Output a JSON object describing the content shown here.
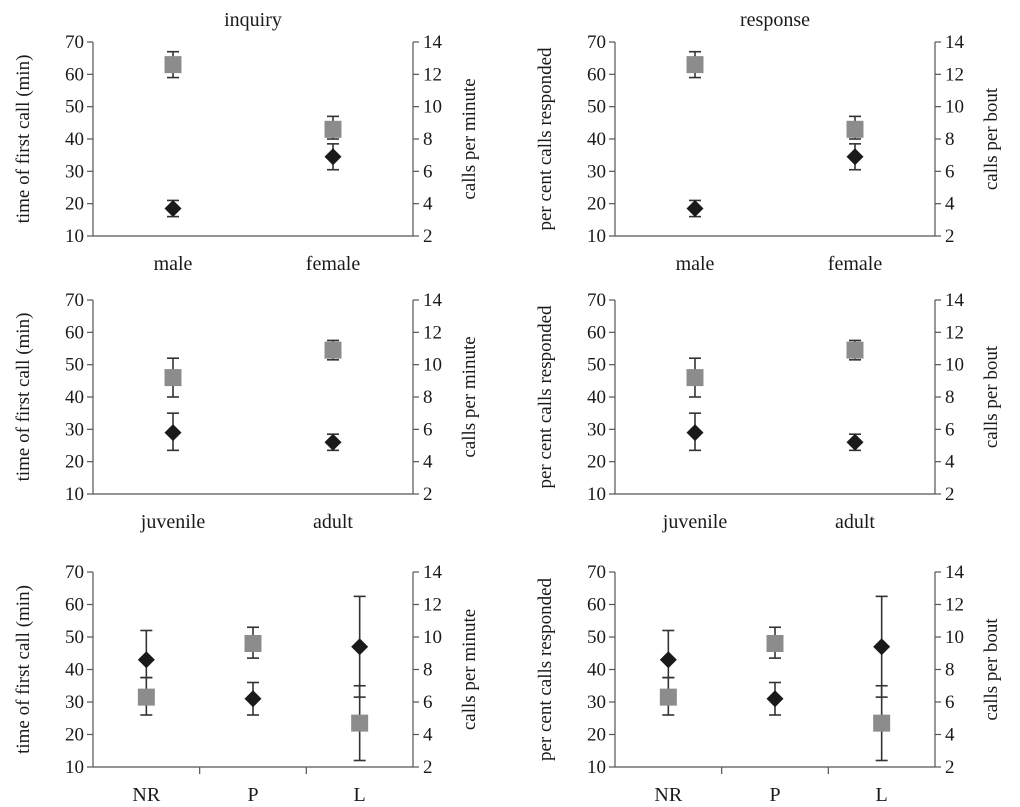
{
  "colors": {
    "axis": "#555555",
    "diamond": "#1a1a1a",
    "square": "#8c8c8c",
    "errorbar": "#333333",
    "text": "#1a1a1a"
  },
  "chart_data": [
    {
      "type": "scatter",
      "title": "inquiry",
      "ylabel": "time of first call (min)",
      "y2label": "calls per minute",
      "categories": [
        "male",
        "female"
      ],
      "ylim": [
        10,
        70
      ],
      "y2lim": [
        2,
        14
      ],
      "yticks": [
        "10",
        "20",
        "30",
        "40",
        "50",
        "60",
        "70"
      ],
      "y2ticks": [
        "2",
        "4",
        "6",
        "8",
        "10",
        "12",
        "14"
      ],
      "category_dividers": false,
      "series": [
        {
          "marker": "square",
          "axis": "left",
          "values": [
            63,
            43
          ],
          "err_low": [
            59,
            40
          ],
          "err_high": [
            67,
            47
          ]
        },
        {
          "marker": "diamond",
          "axis": "left",
          "values": [
            18.5,
            34.5
          ],
          "err_low": [
            16,
            30.5
          ],
          "err_high": [
            21,
            38.5
          ]
        }
      ]
    },
    {
      "type": "scatter",
      "title": "response",
      "ylabel": "per cent calls responded",
      "y2label": "calls per bout",
      "categories": [
        "male",
        "female"
      ],
      "ylim": [
        10,
        70
      ],
      "y2lim": [
        2,
        14
      ],
      "yticks": [
        "10",
        "20",
        "30",
        "40",
        "50",
        "60",
        "70"
      ],
      "y2ticks": [
        "2",
        "4",
        "6",
        "8",
        "10",
        "12",
        "14"
      ],
      "category_dividers": false,
      "series": [
        {
          "marker": "square",
          "axis": "left",
          "values": [
            63,
            43
          ],
          "err_low": [
            59,
            40
          ],
          "err_high": [
            67,
            47
          ]
        },
        {
          "marker": "diamond",
          "axis": "left",
          "values": [
            18.5,
            34.5
          ],
          "err_low": [
            16,
            30.5
          ],
          "err_high": [
            21,
            38.5
          ]
        }
      ]
    },
    {
      "type": "scatter",
      "title": "",
      "ylabel": "time of first call (min)",
      "y2label": "calls per minute",
      "categories": [
        "juvenile",
        "adult"
      ],
      "ylim": [
        10,
        70
      ],
      "y2lim": [
        2,
        14
      ],
      "yticks": [
        "10",
        "20",
        "30",
        "40",
        "50",
        "60",
        "70"
      ],
      "y2ticks": [
        "2",
        "4",
        "6",
        "8",
        "10",
        "12",
        "14"
      ],
      "category_dividers": false,
      "series": [
        {
          "marker": "square",
          "axis": "left",
          "values": [
            46,
            54.5
          ],
          "err_low": [
            40,
            51.5
          ],
          "err_high": [
            52,
            57.5
          ]
        },
        {
          "marker": "diamond",
          "axis": "left",
          "values": [
            29,
            26
          ],
          "err_low": [
            23.5,
            23.5
          ],
          "err_high": [
            35,
            28.5
          ]
        }
      ]
    },
    {
      "type": "scatter",
      "title": "",
      "ylabel": "per cent calls responded",
      "y2label": "calls per bout",
      "categories": [
        "juvenile",
        "adult"
      ],
      "ylim": [
        10,
        70
      ],
      "y2lim": [
        2,
        14
      ],
      "yticks": [
        "10",
        "20",
        "30",
        "40",
        "50",
        "60",
        "70"
      ],
      "y2ticks": [
        "2",
        "4",
        "6",
        "8",
        "10",
        "12",
        "14"
      ],
      "category_dividers": false,
      "series": [
        {
          "marker": "square",
          "axis": "left",
          "values": [
            46,
            54.5
          ],
          "err_low": [
            40,
            51.5
          ],
          "err_high": [
            52,
            57.5
          ]
        },
        {
          "marker": "diamond",
          "axis": "left",
          "values": [
            29,
            26
          ],
          "err_low": [
            23.5,
            23.5
          ],
          "err_high": [
            35,
            28.5
          ]
        }
      ]
    },
    {
      "type": "scatter",
      "title": "",
      "ylabel": "time of first call (min)",
      "y2label": "calls per minute",
      "categories": [
        "NR",
        "P",
        "L"
      ],
      "ylim": [
        10,
        70
      ],
      "y2lim": [
        2,
        14
      ],
      "yticks": [
        "10",
        "20",
        "30",
        "40",
        "50",
        "60",
        "70"
      ],
      "y2ticks": [
        "2",
        "4",
        "6",
        "8",
        "10",
        "12",
        "14"
      ],
      "category_dividers": true,
      "series": [
        {
          "marker": "diamond",
          "axis": "left",
          "values": [
            43,
            31,
            47
          ],
          "err_low": [
            37.5,
            26,
            31.5
          ],
          "err_high": [
            52,
            36,
            62.5
          ]
        },
        {
          "marker": "square",
          "axis": "left",
          "values": [
            31.5,
            48,
            23.5
          ],
          "err_low": [
            26,
            43.5,
            12
          ],
          "err_high": [
            37.5,
            53,
            35
          ]
        }
      ]
    },
    {
      "type": "scatter",
      "title": "",
      "ylabel": "per cent calls responded",
      "y2label": "calls per bout",
      "categories": [
        "NR",
        "P",
        "L"
      ],
      "ylim": [
        10,
        70
      ],
      "y2lim": [
        2,
        14
      ],
      "yticks": [
        "10",
        "20",
        "30",
        "40",
        "50",
        "60",
        "70"
      ],
      "y2ticks": [
        "2",
        "4",
        "6",
        "8",
        "10",
        "12",
        "14"
      ],
      "category_dividers": true,
      "series": [
        {
          "marker": "diamond",
          "axis": "left",
          "values": [
            43,
            31,
            47
          ],
          "err_low": [
            37.5,
            26,
            31.5
          ],
          "err_high": [
            52,
            36,
            62.5
          ]
        },
        {
          "marker": "square",
          "axis": "left",
          "values": [
            31.5,
            48,
            23.5
          ],
          "err_low": [
            26,
            43.5,
            12
          ],
          "err_high": [
            37.5,
            53,
            35
          ]
        }
      ]
    }
  ]
}
